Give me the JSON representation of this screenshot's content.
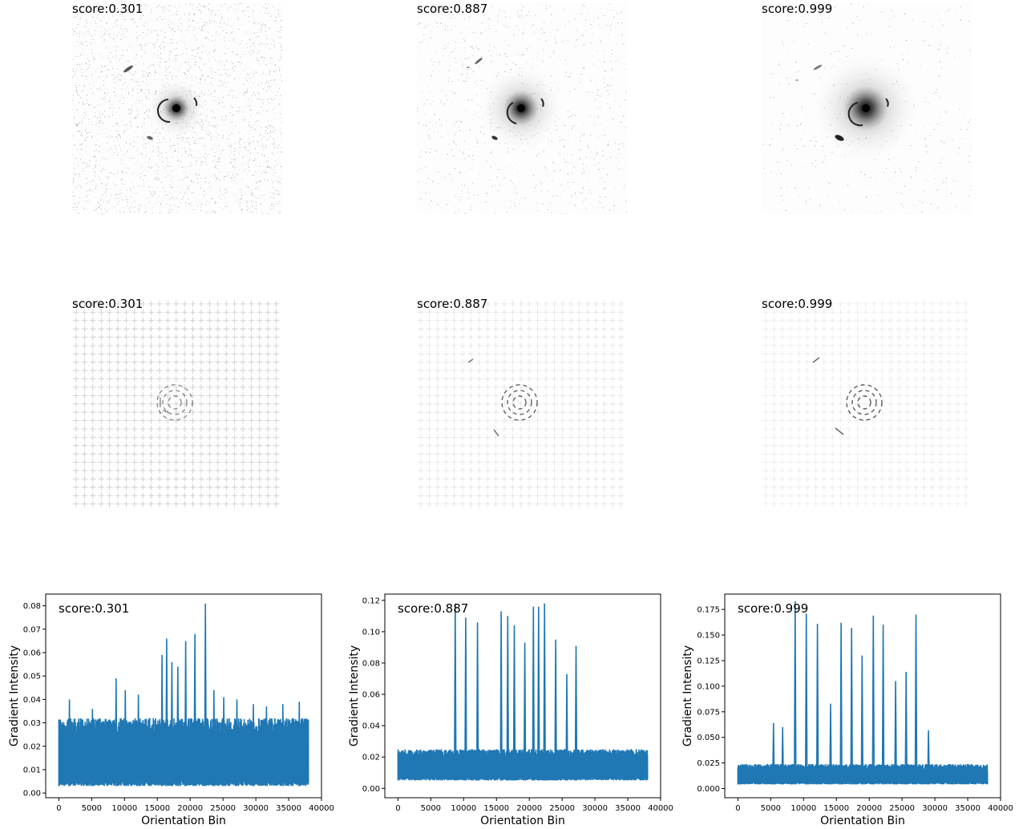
{
  "rows": {
    "images": [
      {
        "score": "score:0.301"
      },
      {
        "score": "score:0.887"
      },
      {
        "score": "score:0.999"
      }
    ],
    "hog": [
      {
        "score": "score:0.301"
      },
      {
        "score": "score:0.887"
      },
      {
        "score": "score:0.999"
      }
    ]
  },
  "chart_data": [
    {
      "type": "line",
      "annotation": "score:0.301",
      "xlabel": "Orientation Bin",
      "ylabel": "Gradient Intensity",
      "xlim": [
        -2000,
        40000
      ],
      "ylim": [
        -0.002,
        0.085
      ],
      "xticks": [
        0,
        5000,
        10000,
        15000,
        20000,
        25000,
        30000,
        35000,
        40000
      ],
      "yticks": [
        0.0,
        0.01,
        0.02,
        0.03,
        0.04,
        0.05,
        0.06,
        0.07,
        0.08
      ],
      "ytick_labels": [
        "0.00",
        "0.01",
        "0.02",
        "0.03",
        "0.04",
        "0.05",
        "0.06",
        "0.07",
        "0.08"
      ],
      "color": "#1f77b4",
      "series_range": [
        0,
        38000
      ],
      "band": [
        0.003,
        0.032
      ],
      "peaks": [
        [
          1500,
          0.04
        ],
        [
          5000,
          0.036
        ],
        [
          8600,
          0.049
        ],
        [
          10000,
          0.044
        ],
        [
          12000,
          0.042
        ],
        [
          15600,
          0.059
        ],
        [
          16300,
          0.066
        ],
        [
          17100,
          0.056
        ],
        [
          18000,
          0.054
        ],
        [
          19200,
          0.065
        ],
        [
          20600,
          0.068
        ],
        [
          22200,
          0.081
        ],
        [
          23500,
          0.044
        ],
        [
          25000,
          0.041
        ],
        [
          27000,
          0.04
        ],
        [
          29500,
          0.038
        ],
        [
          31500,
          0.037
        ],
        [
          34000,
          0.038
        ],
        [
          36500,
          0.039
        ]
      ]
    },
    {
      "type": "line",
      "annotation": "score:0.887",
      "xlabel": "Orientation Bin",
      "ylabel": "Gradient Intensity",
      "xlim": [
        -2000,
        40000
      ],
      "ylim": [
        -0.006,
        0.124
      ],
      "xticks": [
        0,
        5000,
        10000,
        15000,
        20000,
        25000,
        30000,
        35000,
        40000
      ],
      "yticks": [
        0.0,
        0.02,
        0.04,
        0.06,
        0.08,
        0.1,
        0.12
      ],
      "ytick_labels": [
        "0.00",
        "0.02",
        "0.04",
        "0.06",
        "0.08",
        "0.10",
        "0.12"
      ],
      "color": "#1f77b4",
      "series_range": [
        0,
        38000
      ],
      "band": [
        0.005,
        0.025
      ],
      "peaks": [
        [
          8600,
          0.118
        ],
        [
          10200,
          0.109
        ],
        [
          12000,
          0.106
        ],
        [
          15600,
          0.113
        ],
        [
          16600,
          0.11
        ],
        [
          17600,
          0.104
        ],
        [
          19200,
          0.093
        ],
        [
          20500,
          0.116
        ],
        [
          21300,
          0.116
        ],
        [
          22200,
          0.118
        ],
        [
          23900,
          0.095
        ],
        [
          25600,
          0.073
        ],
        [
          27000,
          0.091
        ]
      ]
    },
    {
      "type": "line",
      "annotation": "score:0.999",
      "xlabel": "Orientation Bin",
      "ylabel": "Gradient Intensity",
      "xlim": [
        -2000,
        40000
      ],
      "ylim": [
        -0.009,
        0.19
      ],
      "xticks": [
        0,
        5000,
        10000,
        15000,
        20000,
        25000,
        30000,
        35000,
        40000
      ],
      "yticks": [
        0.0,
        0.025,
        0.05,
        0.075,
        0.1,
        0.125,
        0.15,
        0.175
      ],
      "ytick_labels": [
        "0.000",
        "0.025",
        "0.050",
        "0.075",
        "0.100",
        "0.125",
        "0.150",
        "0.175"
      ],
      "color": "#1f77b4",
      "series_range": [
        0,
        38000
      ],
      "band": [
        0.004,
        0.024
      ],
      "peaks": [
        [
          5300,
          0.064
        ],
        [
          6700,
          0.06
        ],
        [
          8600,
          0.183
        ],
        [
          10300,
          0.171
        ],
        [
          12000,
          0.161
        ],
        [
          14000,
          0.083
        ],
        [
          15600,
          0.162
        ],
        [
          17200,
          0.157
        ],
        [
          18800,
          0.13
        ],
        [
          20500,
          0.169
        ],
        [
          22000,
          0.16
        ],
        [
          23900,
          0.105
        ],
        [
          25500,
          0.114
        ],
        [
          27000,
          0.17
        ],
        [
          28900,
          0.057
        ]
      ]
    }
  ]
}
